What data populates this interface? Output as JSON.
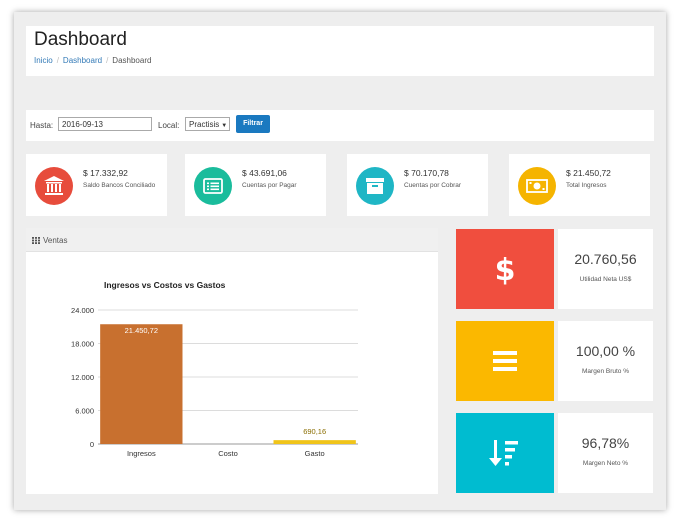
{
  "header": {
    "title": "Dashboard",
    "breadcrumb": [
      "Inicio",
      "Dashboard",
      "Dashboard"
    ]
  },
  "filters": {
    "hasta_label": "Hasta:",
    "hasta_value": "2016-09-13",
    "local_label": "Local:",
    "local_value": "Practisis",
    "button": "Filtrar"
  },
  "stats": [
    {
      "value": "$ 17.332,92",
      "label": "Saldo Bancos Conciliado",
      "color": "#e74c3c",
      "icon": "bank-icon"
    },
    {
      "value": "$ 43.691,06",
      "label": "Cuentas por Pagar",
      "color": "#1abc9c",
      "icon": "list-card-icon"
    },
    {
      "value": "$ 70.170,78",
      "label": "Cuentas por Cobrar",
      "color": "#1fb6c5",
      "icon": "archive-box-icon"
    },
    {
      "value": "$ 21.450,72",
      "label": "Total Ingresos",
      "color": "#f5b400",
      "icon": "money-bill-icon"
    }
  ],
  "chart_panel": {
    "title": "Ventas"
  },
  "chart_data": {
    "type": "bar",
    "title": "Ingresos vs Costos vs Gastos",
    "categories": [
      "Ingresos",
      "Costo",
      "Gasto"
    ],
    "values": [
      21450.72,
      0,
      690.16
    ],
    "data_labels": [
      "21.450,72",
      "",
      "690,16"
    ],
    "bar_colors": [
      "#c8702f",
      "#c8702f",
      "#f0c419"
    ],
    "yticks": [
      0,
      6000,
      12000,
      18000,
      24000
    ],
    "ytick_labels": [
      "0",
      "6.000",
      "12.000",
      "18.000",
      "24.000"
    ],
    "ylim": [
      0,
      24000
    ],
    "xlabel": "",
    "ylabel": "",
    "grid": true
  },
  "kpis": [
    {
      "value": "20.760,56",
      "label": "Utilidad Neta US$",
      "color": "#f04e3e",
      "icon": "dollar-icon"
    },
    {
      "value": "100,00 %",
      "label": "Margen Bruto %",
      "color": "#fbb800",
      "icon": "bars-icon"
    },
    {
      "value": "96,78%",
      "label": "Margen Neto %",
      "color": "#00bcd0",
      "icon": "sort-amount-down-icon"
    }
  ]
}
